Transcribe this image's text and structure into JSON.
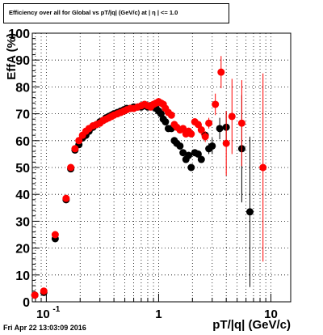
{
  "footer": {
    "date": "Fri Apr 22 13:03:09 2016"
  },
  "colors": {
    "series_black": "#000000",
    "series_red": "#ff0000",
    "grid": "#000000"
  },
  "chart_data": {
    "type": "scatter",
    "title": "Efficiency over all for Global vs pT/|q| (GeV/c) at | η | <= 1.0",
    "xlabel": "pT/|q| (GeV/c)",
    "ylabel": "EffA (%)",
    "xscale": "log",
    "xlim": [
      0.075,
      15
    ],
    "ylim": [
      0,
      100
    ],
    "grid": true,
    "xtick_labels": [
      {
        "value": 0.1,
        "label": "10",
        "exp": "-1"
      },
      {
        "value": 1,
        "label": "1",
        "exp": ""
      },
      {
        "value": 10,
        "label": "10",
        "exp": ""
      }
    ],
    "ytick_labels": [
      "0",
      "10",
      "20",
      "30",
      "40",
      "50",
      "60",
      "70",
      "80",
      "90",
      "100"
    ],
    "series": [
      {
        "color": "#000000",
        "points": [
          {
            "x": 0.079,
            "y": 2.5,
            "ey": 0.5
          },
          {
            "x": 0.095,
            "y": 3.5,
            "ey": 0.5
          },
          {
            "x": 0.12,
            "y": 23.5,
            "ey": 1
          },
          {
            "x": 0.15,
            "y": 38,
            "ey": 1
          },
          {
            "x": 0.165,
            "y": 49.5,
            "ey": 1
          },
          {
            "x": 0.18,
            "y": 56.5,
            "ey": 1
          },
          {
            "x": 0.195,
            "y": 58.5,
            "ey": 1
          },
          {
            "x": 0.21,
            "y": 61
          },
          {
            "x": 0.225,
            "y": 62
          },
          {
            "x": 0.24,
            "y": 63.5
          },
          {
            "x": 0.26,
            "y": 65
          },
          {
            "x": 0.28,
            "y": 66
          },
          {
            "x": 0.3,
            "y": 67
          },
          {
            "x": 0.32,
            "y": 67.5
          },
          {
            "x": 0.34,
            "y": 68.5
          },
          {
            "x": 0.36,
            "y": 69
          },
          {
            "x": 0.38,
            "y": 69.5
          },
          {
            "x": 0.4,
            "y": 70
          },
          {
            "x": 0.43,
            "y": 70.5
          },
          {
            "x": 0.46,
            "y": 71
          },
          {
            "x": 0.49,
            "y": 71.5
          },
          {
            "x": 0.52,
            "y": 72
          },
          {
            "x": 0.56,
            "y": 72
          },
          {
            "x": 0.6,
            "y": 72.5
          },
          {
            "x": 0.65,
            "y": 72.5
          },
          {
            "x": 0.7,
            "y": 72.5
          },
          {
            "x": 0.75,
            "y": 73
          },
          {
            "x": 0.8,
            "y": 72.5
          },
          {
            "x": 0.85,
            "y": 73
          },
          {
            "x": 0.9,
            "y": 72.5
          },
          {
            "x": 0.95,
            "y": 72
          },
          {
            "x": 1.0,
            "y": 71
          },
          {
            "x": 1.05,
            "y": 70
          },
          {
            "x": 1.1,
            "y": 68
          },
          {
            "x": 1.15,
            "y": 67
          },
          {
            "x": 1.22,
            "y": 64.5
          },
          {
            "x": 1.3,
            "y": 64.5
          },
          {
            "x": 1.38,
            "y": 60
          },
          {
            "x": 1.45,
            "y": 59
          },
          {
            "x": 1.55,
            "y": 58
          },
          {
            "x": 1.65,
            "y": 55.5
          },
          {
            "x": 1.75,
            "y": 53
          },
          {
            "x": 1.85,
            "y": 54.5
          },
          {
            "x": 1.95,
            "y": 50
          },
          {
            "x": 2.1,
            "y": 55.5
          },
          {
            "x": 2.25,
            "y": 55
          },
          {
            "x": 2.4,
            "y": 53
          },
          {
            "x": 2.6,
            "y": 62
          },
          {
            "x": 2.8,
            "y": 57,
            "ey": 2
          },
          {
            "x": 3.0,
            "y": 58,
            "ey": 3
          },
          {
            "x": 3.5,
            "y": 64.5,
            "ey": 4
          },
          {
            "x": 4.0,
            "y": 65,
            "ey": 6
          },
          {
            "x": 5.5,
            "y": 57,
            "ey": 20
          },
          {
            "x": 6.5,
            "y": 33.5,
            "ey": 28
          }
        ]
      },
      {
        "color": "#ff0000",
        "points": [
          {
            "x": 0.079,
            "y": 2.5,
            "ey": 0.5
          },
          {
            "x": 0.095,
            "y": 4,
            "ey": 0.5
          },
          {
            "x": 0.12,
            "y": 25,
            "ey": 1
          },
          {
            "x": 0.15,
            "y": 38.5,
            "ey": 1
          },
          {
            "x": 0.165,
            "y": 50,
            "ey": 1
          },
          {
            "x": 0.18,
            "y": 57,
            "ey": 1
          },
          {
            "x": 0.195,
            "y": 60
          },
          {
            "x": 0.21,
            "y": 62
          },
          {
            "x": 0.225,
            "y": 63.5
          },
          {
            "x": 0.24,
            "y": 64.5
          },
          {
            "x": 0.26,
            "y": 65.5
          },
          {
            "x": 0.28,
            "y": 66
          },
          {
            "x": 0.3,
            "y": 66.5
          },
          {
            "x": 0.32,
            "y": 67.5
          },
          {
            "x": 0.34,
            "y": 68
          },
          {
            "x": 0.36,
            "y": 68.5
          },
          {
            "x": 0.38,
            "y": 69
          },
          {
            "x": 0.4,
            "y": 69.5
          },
          {
            "x": 0.43,
            "y": 70
          },
          {
            "x": 0.46,
            "y": 70.5
          },
          {
            "x": 0.49,
            "y": 71
          },
          {
            "x": 0.52,
            "y": 71.5
          },
          {
            "x": 0.56,
            "y": 72
          },
          {
            "x": 0.6,
            "y": 72
          },
          {
            "x": 0.65,
            "y": 72.5
          },
          {
            "x": 0.7,
            "y": 73
          },
          {
            "x": 0.75,
            "y": 73.5
          },
          {
            "x": 0.8,
            "y": 73
          },
          {
            "x": 0.85,
            "y": 72.5
          },
          {
            "x": 0.9,
            "y": 73.5
          },
          {
            "x": 0.95,
            "y": 74
          },
          {
            "x": 1.0,
            "y": 74.5
          },
          {
            "x": 1.05,
            "y": 74
          },
          {
            "x": 1.1,
            "y": 73.5
          },
          {
            "x": 1.15,
            "y": 72
          },
          {
            "x": 1.22,
            "y": 70.5
          },
          {
            "x": 1.3,
            "y": 69.5
          },
          {
            "x": 1.38,
            "y": 66
          },
          {
            "x": 1.45,
            "y": 65
          },
          {
            "x": 1.55,
            "y": 64
          },
          {
            "x": 1.65,
            "y": 64.5
          },
          {
            "x": 1.75,
            "y": 62.5
          },
          {
            "x": 1.85,
            "y": 63.5
          },
          {
            "x": 1.95,
            "y": 62.5
          },
          {
            "x": 2.1,
            "y": 67
          },
          {
            "x": 2.25,
            "y": 66
          },
          {
            "x": 2.4,
            "y": 64,
            "ey": 2
          },
          {
            "x": 2.6,
            "y": 61.5,
            "ey": 2
          },
          {
            "x": 2.8,
            "y": 66.5,
            "ey": 2
          },
          {
            "x": 3.2,
            "y": 73.5,
            "ey": 4
          },
          {
            "x": 3.6,
            "y": 85.5,
            "ey": 6
          },
          {
            "x": 4.0,
            "y": 59,
            "ey": 12
          },
          {
            "x": 4.5,
            "y": 69,
            "ey": 14
          },
          {
            "x": 5.5,
            "y": 66.5,
            "ey": 16
          },
          {
            "x": 8.5,
            "y": 50,
            "ey": 35
          }
        ]
      }
    ]
  }
}
